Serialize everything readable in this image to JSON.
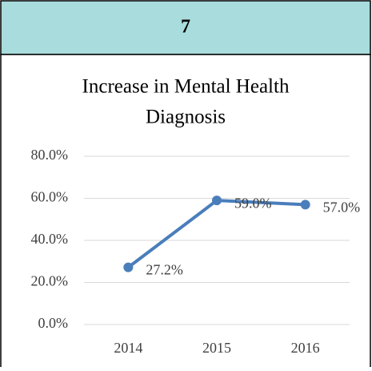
{
  "header": {
    "title": "7"
  },
  "chart_data": {
    "type": "line",
    "title": [
      "Increase in Mental Health",
      "Diagnosis"
    ],
    "categories": [
      "2014",
      "2015",
      "2016"
    ],
    "series": [
      {
        "name": null,
        "color": "#4a7ebb",
        "values": [
          27.2,
          59.0,
          57.0
        ],
        "value_labels": [
          "27.2%",
          "59.0%",
          "57.0%"
        ]
      }
    ],
    "ylim": [
      0,
      80
    ],
    "yticks": [
      {
        "value": 0,
        "label": "0.0%"
      },
      {
        "value": 20,
        "label": "20.0%"
      },
      {
        "value": 40,
        "label": "40.0%"
      },
      {
        "value": 60,
        "label": "60.0%"
      },
      {
        "value": 80,
        "label": "80.0%"
      }
    ],
    "grid": true
  }
}
